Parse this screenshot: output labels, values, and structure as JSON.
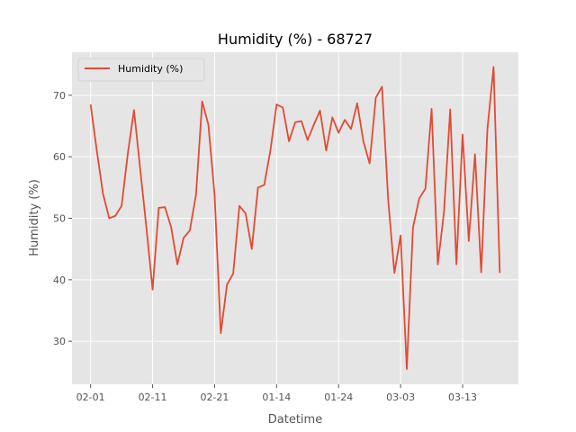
{
  "chart_data": {
    "type": "line",
    "title": "Humidity (%) - 68727",
    "xlabel": "Datetime",
    "ylabel": "Humidity (%)",
    "x_tick_labels": [
      "02-01",
      "02-11",
      "02-21",
      "01-14",
      "01-24",
      "03-03",
      "03-13"
    ],
    "x_tick_indices": [
      0,
      10,
      20,
      30,
      40,
      50,
      60
    ],
    "xlim": [
      -3,
      69
    ],
    "ylim": [
      23,
      77
    ],
    "y_ticks": [
      30,
      40,
      50,
      60,
      70
    ],
    "grid": true,
    "legend_position": "upper-left",
    "series": [
      {
        "name": "Humidity (%)",
        "color": "#E24A33",
        "values": [
          68.5,
          61.0,
          54.0,
          50.0,
          50.4,
          52.0,
          60.5,
          67.6,
          58.0,
          48.5,
          38.4,
          51.7,
          51.8,
          48.5,
          42.5,
          46.8,
          48.0,
          53.8,
          69.0,
          65.2,
          53.8,
          31.3,
          39.2,
          41.0,
          52.0,
          50.8,
          45.0,
          55.0,
          55.4,
          61.0,
          68.5,
          68.0,
          62.5,
          65.6,
          65.8,
          62.7,
          65.2,
          67.5,
          61.0,
          66.4,
          63.9,
          66.0,
          64.5,
          68.7,
          62.5,
          58.9,
          69.6,
          71.4,
          53.0,
          41.1,
          47.2,
          25.5,
          48.5,
          53.2,
          54.8,
          67.8,
          42.5,
          51.0,
          67.7,
          42.5,
          63.6,
          46.3,
          60.4,
          41.2,
          64.5,
          74.6,
          41.1
        ]
      }
    ]
  }
}
